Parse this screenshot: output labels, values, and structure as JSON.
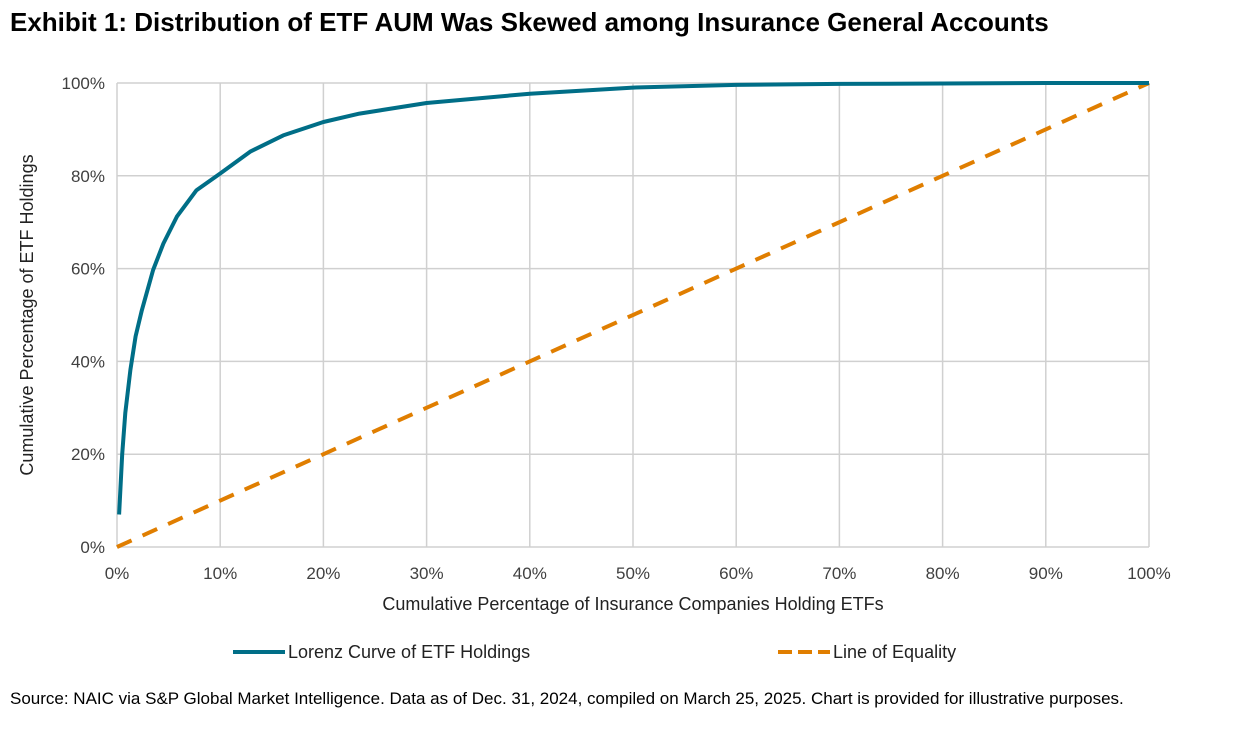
{
  "title": "Exhibit 1: Distribution of ETF AUM Was Skewed among Insurance General Accounts",
  "source": "Source: NAIC via S&P Global Market Intelligence. Data as of Dec. 31, 2024, compiled on March 25, 2025. Chart is provided for illustrative purposes.",
  "chart_data": {
    "type": "line",
    "xlabel": "Cumulative Percentage of Insurance Companies Holding ETFs",
    "ylabel": "Cumulative Percentage of ETF Holdings",
    "xlim": [
      0,
      100
    ],
    "ylim": [
      0,
      100
    ],
    "xticks": [
      "0%",
      "10%",
      "20%",
      "30%",
      "40%",
      "50%",
      "60%",
      "70%",
      "80%",
      "90%",
      "100%"
    ],
    "yticks": [
      "0%",
      "20%",
      "40%",
      "60%",
      "80%",
      "100%"
    ],
    "grid": "both",
    "legend_position": "bottom",
    "series": [
      {
        "name": "Lorenz Curve of ETF Holdings",
        "color": "#006E87",
        "dash": false,
        "x": [
          0.2,
          0.5,
          0.8,
          1.3,
          1.8,
          2.4,
          3.5,
          4.5,
          5.8,
          7.7,
          10,
          12.9,
          16.1,
          20,
          23.5,
          30,
          40,
          50,
          60,
          70,
          80,
          90,
          100
        ],
        "y": [
          7,
          20,
          28.9,
          38.2,
          45.4,
          51,
          59.7,
          65.4,
          71.2,
          76.9,
          80.5,
          85.2,
          88.7,
          91.6,
          93.4,
          95.7,
          97.7,
          99.0,
          99.6,
          99.8,
          99.9,
          100,
          100
        ]
      },
      {
        "name": "Line of Equality",
        "color": "#E07E00",
        "dash": true,
        "x": [
          0,
          100
        ],
        "y": [
          0,
          100
        ]
      }
    ]
  }
}
